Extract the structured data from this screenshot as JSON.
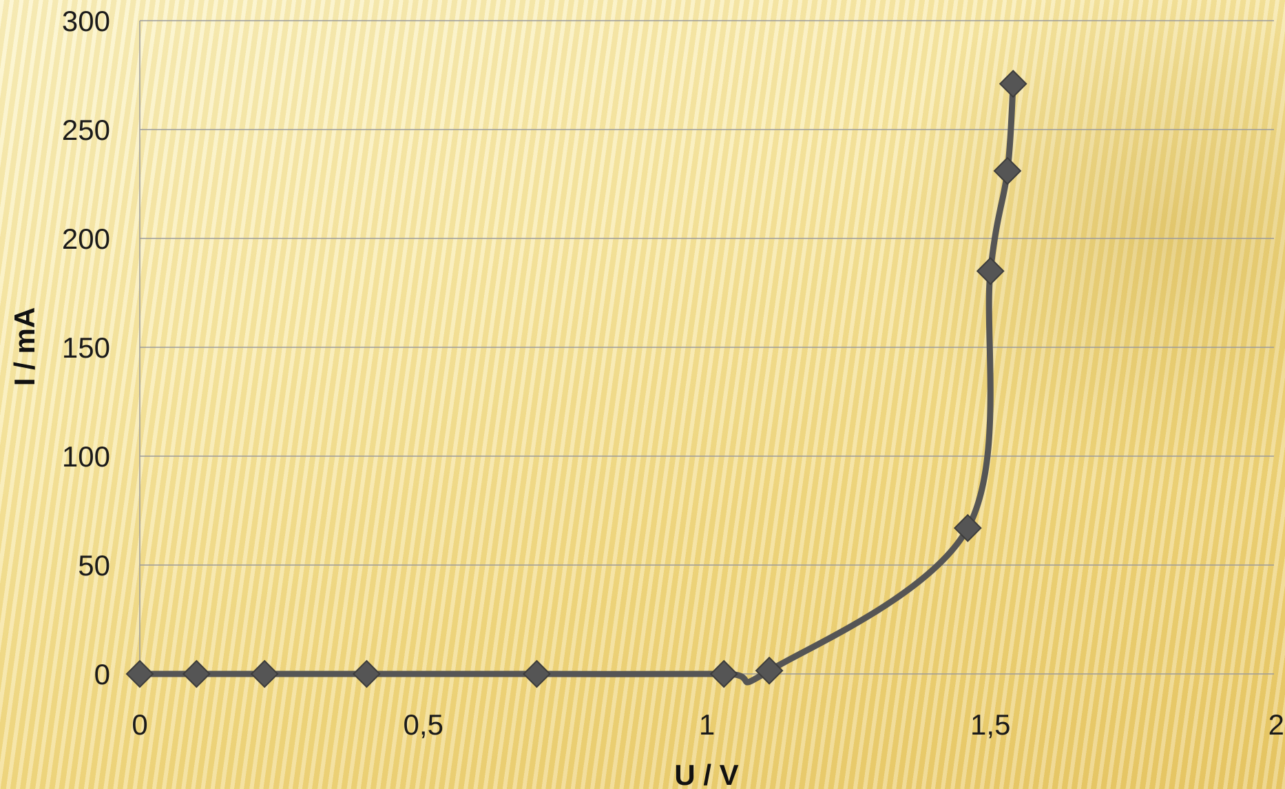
{
  "chart_data": {
    "type": "scatter",
    "title": "",
    "xlabel": "U / V",
    "ylabel": "I / mA",
    "xlim": [
      0,
      2
    ],
    "ylim": [
      0,
      300
    ],
    "x_ticks": [
      "0",
      "0,5",
      "1",
      "1,5",
      "2"
    ],
    "y_ticks": [
      "0",
      "50",
      "100",
      "150",
      "200",
      "250",
      "300"
    ],
    "grid": "horizontal",
    "line": "smooth",
    "marker": "diamond",
    "series_color": "#555555",
    "series": [
      {
        "x": [
          0,
          0.1,
          0.22,
          0.4,
          0.7,
          1.03,
          1.11,
          1.46,
          1.5,
          1.53,
          1.54
        ],
        "y": [
          0,
          0,
          0,
          0,
          0,
          0,
          1.5,
          67,
          185,
          231,
          271
        ]
      }
    ]
  }
}
